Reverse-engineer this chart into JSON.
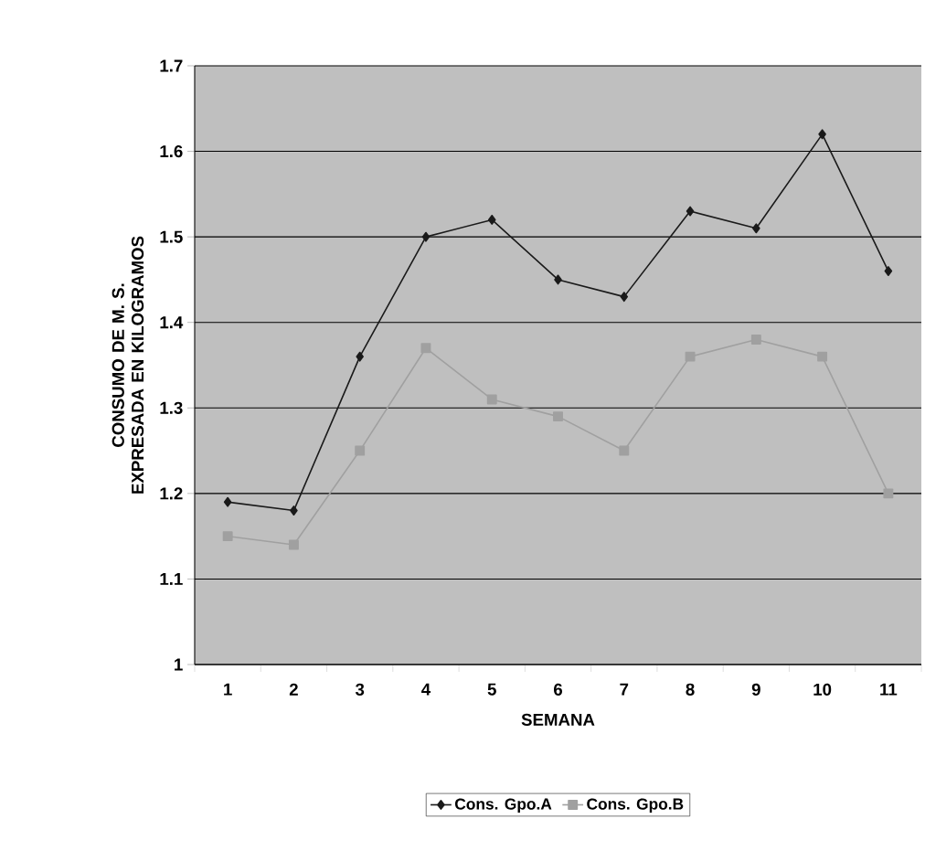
{
  "chart_data": {
    "type": "line",
    "xlabel": "SEMANA",
    "ylabel": "CONSUMO DE M. S. EXPRESADA EN KILOGRAMOS",
    "categories": [
      "1",
      "2",
      "3",
      "4",
      "5",
      "6",
      "7",
      "8",
      "9",
      "10",
      "11"
    ],
    "series": [
      {
        "name": "Cons. Gpo.A",
        "color": "#1a1a1a",
        "marker": "diamond",
        "values": [
          1.19,
          1.18,
          1.36,
          1.5,
          1.52,
          1.45,
          1.43,
          1.53,
          1.51,
          1.62,
          1.46
        ]
      },
      {
        "name": "Cons. Gpo.B",
        "color": "#a0a0a0",
        "marker": "square",
        "values": [
          1.15,
          1.14,
          1.25,
          1.37,
          1.31,
          1.29,
          1.25,
          1.36,
          1.38,
          1.36,
          1.2
        ]
      }
    ],
    "ylim": [
      1,
      1.7
    ],
    "yticks": [
      1,
      1.1,
      1.2,
      1.3,
      1.4,
      1.5,
      1.6,
      1.7
    ],
    "grid": "y",
    "legend": "bottom",
    "line_style": "solid"
  }
}
